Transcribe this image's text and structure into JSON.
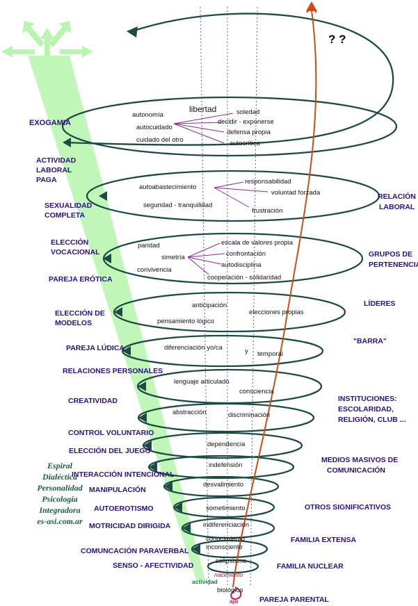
{
  "diagram": {
    "question_marks": "? ?",
    "exogamia": "EXOGAMIA",
    "title_lines": [
      "Espiral",
      "Dialéctica",
      "Personalidad",
      "Psicología",
      "Integradora",
      "es-asi.com.ar"
    ],
    "left_labels": [
      "ACTIVIDAD",
      "LABORAL",
      "PAGA",
      "SEXUALIDAD",
      "COMPLETA",
      "ELECCIÓN",
      "VOCACIONAL",
      "PAREJA ERÓTICA",
      "ELECCIÓN DE",
      "MODELOS",
      "PAREJA LÚDICA",
      "RELACIONES PERSONALES",
      "CREATIVIDAD",
      "CONTROL VOLUNTARIO",
      "ELECCIÓN DEL JUEGO",
      "INTERACCIÓN INTENCIONAL",
      "MANIPULACIÓN",
      "AUTOEROTISMO",
      "MOTRICIDAD DIRIGIDA",
      "COMUNCACIÓN PARAVERBAL",
      "SENSO - AFECTIVIDAD"
    ],
    "right_labels": [
      "RELACIÓN",
      "LABORAL",
      "GRUPOS DE",
      "PERTENENCIA",
      "LÍDERES",
      "\"BARRA\"",
      "INSTITUCIONES:",
      "ESCOLARIDAD,",
      "RELIGIÓN, CLUB ...",
      "MEDIOS MASIVOS DE",
      "COMUNICACIÓN",
      "OTROS SIGNIFICATIVOS",
      "FAMILIA EXTENSA",
      "FAMILIA NUCLEAR",
      "PAREJA PARENTAL"
    ],
    "inner_labels": [
      "libertad",
      "autonomía",
      "autocuidado",
      "cuidado del otro",
      "soledad",
      "decidir - exponerse",
      "defensa propia",
      "autocrítica",
      "autoabastecimiento",
      "seguridad - tranquilidad",
      "responsabilidad",
      "voluntad forzada",
      "frustración",
      "paridad",
      "simetría",
      "convivencia",
      "escala de valores propia",
      "confrontación",
      "autodisciplina",
      "cooperación - solidaridad",
      "anticipación",
      "pensamiento  lógico",
      "elecciones propias",
      "diferenciación  yo/ca",
      "y",
      "temporal",
      "lenguaje articulado",
      "consciencia",
      "abstracción",
      "discriminación",
      "dependencia",
      "indefensión",
      "desvalimiento",
      "sometimiento",
      "indiferenciación",
      "conocimiento",
      "inconsciente",
      "solipsismo",
      "nacimiento",
      "biológico",
      "actividad",
      "ajo"
    ]
  }
}
